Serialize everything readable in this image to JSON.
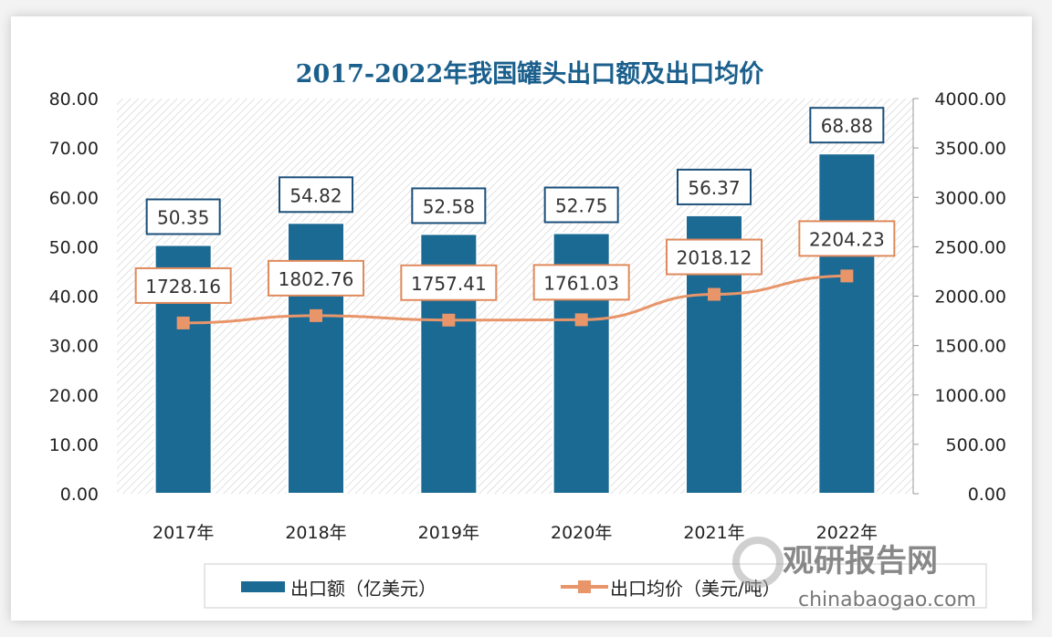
{
  "chart_data": {
    "type": "bar+line",
    "title": "2017-2022年我国罐头出口额及出口均价",
    "categories": [
      "2017年",
      "2018年",
      "2019年",
      "2020年",
      "2021年",
      "2022年"
    ],
    "series": [
      {
        "name": "出口额（亿美元）",
        "type": "bar",
        "axis": "left",
        "values": [
          50.35,
          54.82,
          52.58,
          52.75,
          56.37,
          68.88
        ],
        "labels": [
          "50.35",
          "54.82",
          "52.58",
          "52.75",
          "56.37",
          "68.88"
        ],
        "color": "#1b6a94"
      },
      {
        "name": "出口均价（美元/吨）",
        "type": "line",
        "axis": "right",
        "values": [
          1728.16,
          1802.76,
          1757.41,
          1761.03,
          2018.12,
          2204.23
        ],
        "labels": [
          "1728.16",
          "1802.76",
          "1757.41",
          "1761.03",
          "2018.12",
          "2204.23"
        ],
        "color": "#e8956a"
      }
    ],
    "left_axis": {
      "ylim": [
        0,
        80
      ],
      "ticks": [
        "0.00",
        "10.00",
        "20.00",
        "30.00",
        "40.00",
        "50.00",
        "60.00",
        "70.00",
        "80.00"
      ]
    },
    "right_axis": {
      "ylim": [
        0,
        4000
      ],
      "ticks": [
        "0.00",
        "500.00",
        "1000.00",
        "1500.00",
        "2000.00",
        "2500.00",
        "3000.00",
        "3500.00",
        "4000.00"
      ]
    },
    "legend_placement": "bottom",
    "grid": false,
    "background": "hatched"
  },
  "watermark": {
    "text": "观研报告网",
    "url_text": "chinabaogao.com"
  }
}
